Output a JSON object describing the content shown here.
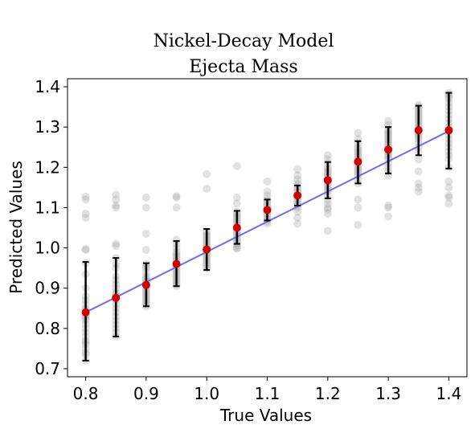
{
  "chart_data": {
    "type": "scatter",
    "title": "Nickel-Decay Model",
    "subtitle": "Ejecta Mass",
    "xlabel": "True Values",
    "ylabel": "Predicted Values",
    "xlim": [
      0.77,
      1.43
    ],
    "ylim": [
      0.68,
      1.42
    ],
    "xticks": [
      "0.8",
      "0.9",
      "1.0",
      "1.1",
      "1.2",
      "1.3",
      "1.4"
    ],
    "yticks": [
      "0.7",
      "0.8",
      "0.9",
      "1.0",
      "1.1",
      "1.2",
      "1.3",
      "1.4"
    ],
    "grid": false,
    "colors": {
      "points": "#9e9e9e",
      "mean": "#d40000",
      "errorbar": "#000000",
      "fit_line": "#6b6bff"
    },
    "fit_line": {
      "x": [
        0.8,
        1.4
      ],
      "y": [
        0.84,
        1.29
      ]
    },
    "summary": {
      "x": [
        0.8,
        0.85,
        0.9,
        0.95,
        1.0,
        1.05,
        1.1,
        1.15,
        1.2,
        1.25,
        1.3,
        1.35,
        1.4
      ],
      "mean": [
        0.84,
        0.876,
        0.908,
        0.96,
        0.996,
        1.05,
        1.094,
        1.13,
        1.168,
        1.214,
        1.244,
        1.292,
        1.292
      ],
      "lower": [
        0.72,
        0.78,
        0.855,
        0.905,
        0.945,
        1.01,
        1.068,
        1.105,
        1.123,
        1.16,
        1.185,
        1.23,
        1.197
      ],
      "upper": [
        0.965,
        0.975,
        0.962,
        1.017,
        1.047,
        1.092,
        1.12,
        1.155,
        1.213,
        1.265,
        1.3,
        1.353,
        1.385
      ]
    },
    "points": [
      {
        "x": 0.8,
        "y": [
          1.127,
          1.12,
          1.085,
          1.075,
          0.997,
          0.995,
          0.962,
          0.935,
          0.9,
          0.88,
          0.87,
          0.86,
          0.85,
          0.845,
          0.835,
          0.83,
          0.825,
          0.82,
          0.81,
          0.8,
          0.79,
          0.78,
          0.77,
          0.765,
          0.76,
          0.75,
          0.74,
          0.735,
          0.72
        ]
      },
      {
        "x": 0.85,
        "y": [
          1.132,
          1.12,
          1.105,
          1.1,
          1.01,
          1.005,
          0.975,
          0.96,
          0.95,
          0.93,
          0.92,
          0.91,
          0.9,
          0.89,
          0.885,
          0.88,
          0.875,
          0.87,
          0.86,
          0.85,
          0.84,
          0.83,
          0.82,
          0.81,
          0.8,
          0.79,
          0.78
        ]
      },
      {
        "x": 0.9,
        "y": [
          1.125,
          1.1,
          1.035,
          0.995,
          0.96,
          0.955,
          0.95,
          0.94,
          0.93,
          0.925,
          0.92,
          0.915,
          0.91,
          0.905,
          0.9,
          0.895,
          0.89,
          0.885,
          0.88,
          0.875,
          0.87,
          0.865,
          0.86,
          0.855
        ]
      },
      {
        "x": 0.95,
        "y": [
          1.128,
          1.125,
          1.1,
          1.02,
          1.01,
          1.0,
          0.99,
          0.985,
          0.98,
          0.975,
          0.97,
          0.965,
          0.96,
          0.955,
          0.95,
          0.945,
          0.94,
          0.935,
          0.93,
          0.925,
          0.92,
          0.915,
          0.91,
          0.905
        ]
      },
      {
        "x": 1.0,
        "y": [
          1.183,
          1.147,
          1.04,
          1.035,
          1.03,
          1.025,
          1.02,
          1.015,
          1.01,
          1.005,
          1.0,
          0.995,
          0.99,
          0.985,
          0.98,
          0.975,
          0.97,
          0.965,
          0.96,
          0.955,
          0.95
        ]
      },
      {
        "x": 1.05,
        "y": [
          1.203,
          1.125,
          1.11,
          1.09,
          1.085,
          1.08,
          1.075,
          1.07,
          1.065,
          1.06,
          1.055,
          1.05,
          1.045,
          1.04,
          1.035,
          1.03,
          1.025,
          1.02,
          1.015,
          1.01,
          1.005,
          1.0,
          0.998
        ]
      },
      {
        "x": 1.1,
        "y": [
          1.165,
          1.14,
          1.13,
          1.12,
          1.115,
          1.11,
          1.105,
          1.1,
          1.095,
          1.09,
          1.085,
          1.08,
          1.075,
          1.07,
          1.065,
          1.06
        ]
      },
      {
        "x": 1.15,
        "y": [
          1.195,
          1.18,
          1.17,
          1.16,
          1.155,
          1.15,
          1.145,
          1.14,
          1.135,
          1.13,
          1.125,
          1.12,
          1.115,
          1.11,
          1.105,
          1.1,
          1.09,
          1.075,
          1.06
        ]
      },
      {
        "x": 1.2,
        "y": [
          1.23,
          1.22,
          1.21,
          1.2,
          1.195,
          1.19,
          1.185,
          1.18,
          1.175,
          1.17,
          1.165,
          1.16,
          1.155,
          1.15,
          1.145,
          1.14,
          1.13,
          1.12,
          1.11,
          1.1,
          1.095,
          1.085,
          1.042
        ]
      },
      {
        "x": 1.25,
        "y": [
          1.285,
          1.27,
          1.26,
          1.25,
          1.245,
          1.24,
          1.235,
          1.23,
          1.225,
          1.22,
          1.215,
          1.21,
          1.205,
          1.2,
          1.195,
          1.19,
          1.185,
          1.18,
          1.17,
          1.16,
          1.12,
          1.1,
          1.057
        ]
      },
      {
        "x": 1.3,
        "y": [
          1.315,
          1.305,
          1.295,
          1.29,
          1.285,
          1.28,
          1.275,
          1.27,
          1.265,
          1.26,
          1.255,
          1.25,
          1.245,
          1.24,
          1.235,
          1.23,
          1.225,
          1.22,
          1.21,
          1.2,
          1.19,
          1.18,
          1.105,
          1.1,
          1.078
        ]
      },
      {
        "x": 1.35,
        "y": [
          1.355,
          1.35,
          1.345,
          1.34,
          1.335,
          1.33,
          1.325,
          1.32,
          1.315,
          1.31,
          1.305,
          1.3,
          1.295,
          1.29,
          1.285,
          1.28,
          1.275,
          1.27,
          1.26,
          1.25,
          1.24,
          1.22,
          1.19,
          1.16,
          1.15,
          1.14
        ]
      },
      {
        "x": 1.4,
        "y": [
          1.385,
          1.38,
          1.375,
          1.37,
          1.36,
          1.35,
          1.34,
          1.33,
          1.32,
          1.31,
          1.3,
          1.29,
          1.28,
          1.27,
          1.26,
          1.25,
          1.24,
          1.23,
          1.22,
          1.2,
          1.165,
          1.15,
          1.13,
          1.125,
          1.11
        ]
      }
    ]
  }
}
